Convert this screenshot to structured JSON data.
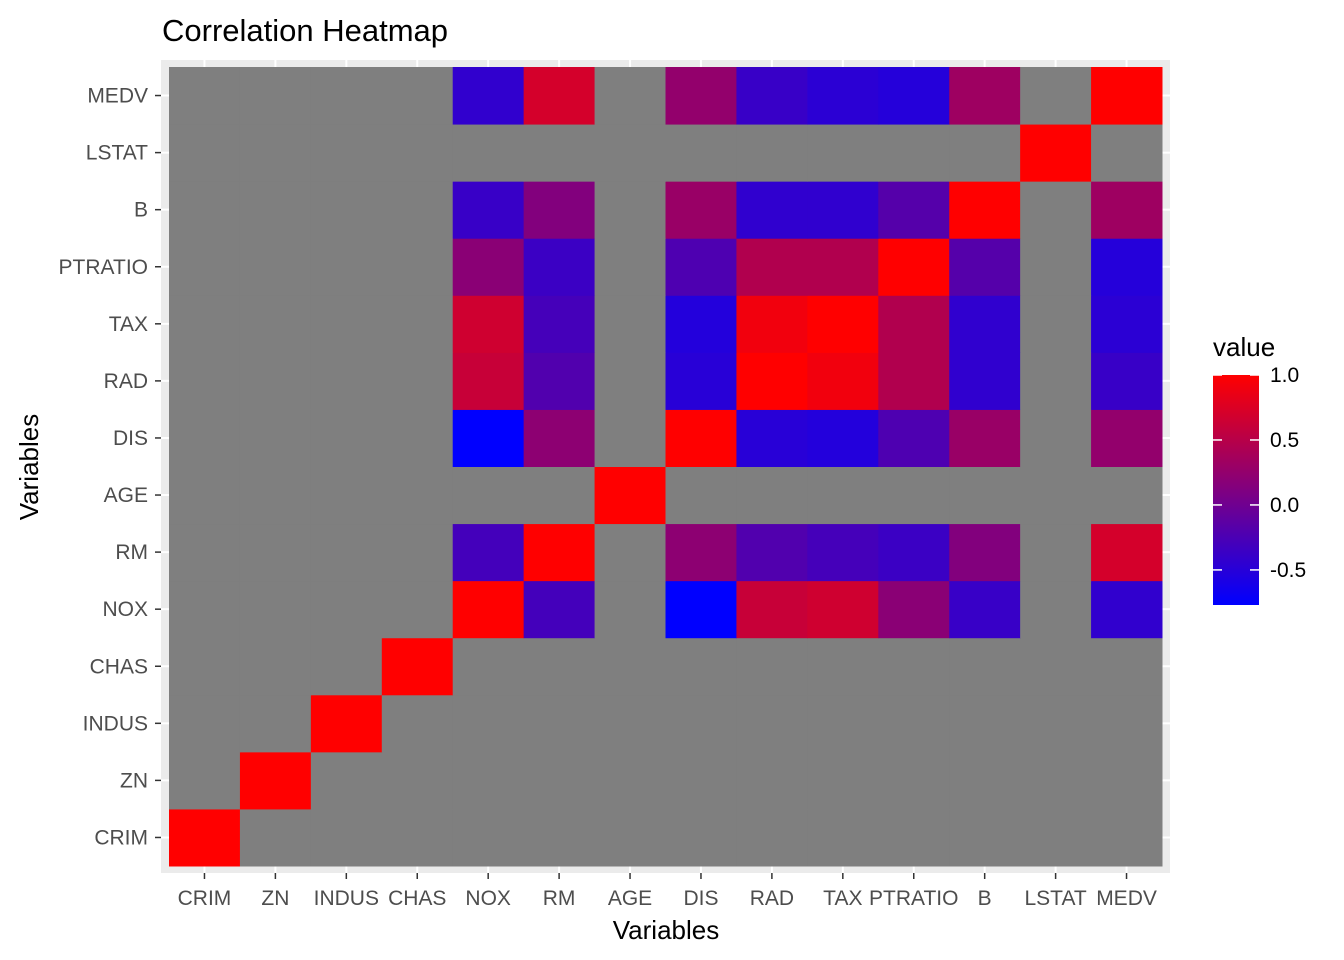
{
  "chart_data": {
    "type": "heatmap",
    "title": "Correlation Heatmap",
    "xlabel": "Variables",
    "ylabel": "Variables",
    "x_categories": [
      "CRIM",
      "ZN",
      "INDUS",
      "CHAS",
      "NOX",
      "RM",
      "AGE",
      "DIS",
      "RAD",
      "TAX",
      "PTRATIO",
      "B",
      "LSTAT",
      "MEDV"
    ],
    "y_categories": [
      "CRIM",
      "ZN",
      "INDUS",
      "CHAS",
      "NOX",
      "RM",
      "AGE",
      "DIS",
      "RAD",
      "TAX",
      "PTRATIO",
      "B",
      "LSTAT",
      "MEDV"
    ],
    "values": [
      [
        1.0,
        null,
        null,
        null,
        null,
        null,
        null,
        null,
        null,
        null,
        null,
        null,
        null,
        null
      ],
      [
        null,
        1.0,
        null,
        null,
        null,
        null,
        null,
        null,
        null,
        null,
        null,
        null,
        null,
        null
      ],
      [
        null,
        null,
        1.0,
        null,
        null,
        null,
        null,
        null,
        null,
        null,
        null,
        null,
        null,
        null
      ],
      [
        null,
        null,
        null,
        1.0,
        null,
        null,
        null,
        null,
        null,
        null,
        null,
        null,
        null,
        null
      ],
      [
        null,
        null,
        null,
        null,
        1.0,
        -0.3,
        null,
        -0.77,
        0.61,
        0.67,
        0.19,
        -0.38,
        null,
        -0.43
      ],
      [
        null,
        null,
        null,
        null,
        -0.3,
        1.0,
        null,
        0.21,
        -0.21,
        -0.29,
        -0.36,
        0.13,
        null,
        0.7
      ],
      [
        null,
        null,
        null,
        null,
        null,
        null,
        1.0,
        null,
        null,
        null,
        null,
        null,
        null,
        null
      ],
      [
        null,
        null,
        null,
        null,
        -0.77,
        0.21,
        null,
        1.0,
        -0.49,
        -0.53,
        -0.23,
        0.29,
        null,
        0.25
      ],
      [
        null,
        null,
        null,
        null,
        0.61,
        -0.21,
        null,
        -0.49,
        1.0,
        0.91,
        0.46,
        -0.44,
        null,
        -0.38
      ],
      [
        null,
        null,
        null,
        null,
        0.67,
        -0.29,
        null,
        -0.53,
        0.91,
        1.0,
        0.46,
        -0.44,
        null,
        -0.47
      ],
      [
        null,
        null,
        null,
        null,
        0.19,
        -0.36,
        null,
        -0.23,
        0.46,
        0.46,
        1.0,
        -0.18,
        null,
        -0.51
      ],
      [
        null,
        null,
        null,
        null,
        -0.38,
        0.13,
        null,
        0.29,
        -0.44,
        -0.44,
        -0.18,
        1.0,
        null,
        0.33
      ],
      [
        null,
        null,
        null,
        null,
        null,
        null,
        null,
        null,
        null,
        null,
        null,
        null,
        1.0,
        null
      ],
      [
        null,
        null,
        null,
        null,
        -0.43,
        0.7,
        null,
        0.25,
        -0.38,
        -0.47,
        -0.51,
        0.33,
        null,
        1.0
      ]
    ],
    "missing_color": "#7f7f7f",
    "color_scale": {
      "low": "#0000FF",
      "high": "#FF0000",
      "min": -0.77,
      "max": 1.0
    },
    "legend": {
      "title": "value",
      "placement": "right",
      "ticks": [
        1.0,
        0.5,
        0.0,
        -0.5
      ],
      "tick_labels": [
        "1.0",
        "0.5",
        "0.0",
        "-0.5"
      ]
    },
    "grid": true,
    "panel_background": "#ebebeb"
  }
}
